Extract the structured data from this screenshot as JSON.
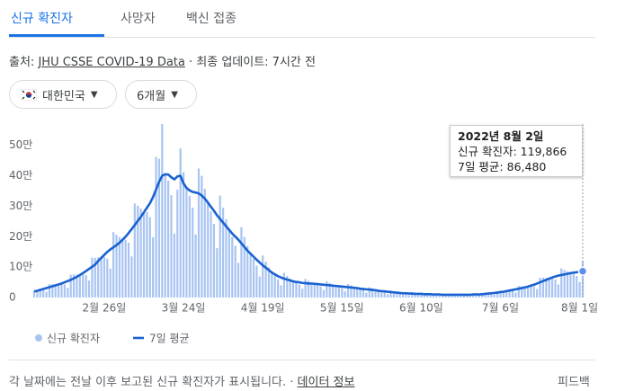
{
  "tabs": [
    "신규 확진자",
    "사망자",
    "백신 접종"
  ],
  "source": {
    "prefix": "출처:",
    "link": "JHU CSSE COVID-19 Data",
    "updated": "· 최종 업데이트: 7시간 전"
  },
  "filters": [
    "대한민국",
    "6개월"
  ],
  "chart_data": {
    "type": "combo",
    "categories": [
      null,
      null,
      null,
      null,
      null,
      null,
      null,
      null,
      null,
      null,
      null,
      null,
      null,
      null,
      null,
      null,
      null,
      null,
      null,
      null,
      null,
      null,
      null,
      "2월 26일",
      null,
      null,
      null,
      null,
      null,
      null,
      null,
      null,
      null,
      null,
      null,
      null,
      null,
      null,
      null,
      null,
      null,
      null,
      null,
      null,
      null,
      null,
      null,
      null,
      null,
      "3월 24일",
      null,
      null,
      null,
      null,
      null,
      null,
      null,
      null,
      null,
      null,
      null,
      null,
      null,
      null,
      null,
      null,
      null,
      null,
      null,
      null,
      null,
      null,
      null,
      null,
      null,
      "4월 19일",
      null,
      null,
      null,
      null,
      null,
      null,
      null,
      null,
      null,
      null,
      null,
      null,
      null,
      null,
      null,
      null,
      null,
      null,
      null,
      null,
      null,
      null,
      null,
      null,
      null,
      "5월 15일",
      null,
      null,
      null,
      null,
      null,
      null,
      null,
      null,
      null,
      null,
      null,
      null,
      null,
      null,
      null,
      null,
      null,
      null,
      null,
      null,
      null,
      null,
      null,
      null,
      null,
      "6월 10일",
      null,
      null,
      null,
      null,
      null,
      null,
      null,
      null,
      null,
      null,
      null,
      null,
      null,
      null,
      null,
      null,
      null,
      null,
      null,
      null,
      null,
      null,
      null,
      null,
      null,
      "7월 6일",
      null,
      null,
      null,
      null,
      null,
      null,
      null,
      null,
      null,
      null,
      null,
      null,
      null,
      null,
      null,
      null,
      null,
      null,
      null,
      null,
      null,
      null,
      null,
      null,
      null,
      "8월 1일",
      null
    ],
    "series": [
      {
        "name": "신규 확진자",
        "type": "bar",
        "color": "#a8c4f2",
        "values": [
          22000,
          22000,
          24000,
          24000,
          19000,
          44000,
          44000,
          44000,
          43000,
          44000,
          43000,
          32000,
          75000,
          76000,
          75000,
          74000,
          76000,
          74000,
          56000,
          131000,
          130000,
          132000,
          130000,
          133000,
          128000,
          95000,
          215000,
          206000,
          198000,
          190000,
          190000,
          180000,
          135000,
          309000,
          302000,
          292000,
          280000,
          280000,
          264000,
          198000,
          462000,
          456000,
          570000,
          405000,
          384000,
          336000,
          210000,
          354000,
          490000,
          412000,
          360000,
          334000,
          295000,
          207000,
          424000,
          400000,
          357000,
          312000,
          283000,
          242000,
          162000,
          335000,
          295000,
          257000,
          222000,
          200000,
          170000,
          114000,
          231000,
          199000,
          169000,
          144000,
          127000,
          105000,
          69000,
          138000,
          118000,
          99000,
          82000,
          72000,
          60000,
          40000,
          81000,
          71000,
          62000,
          53000,
          48000,
          43000,
          29000,
          61000,
          55000,
          42000,
          45000,
          42000,
          37000,
          25000,
          53000,
          48000,
          43000,
          38000,
          35000,
          31000,
          21000,
          44000,
          40000,
          35000,
          31000,
          28000,
          24000,
          16000,
          34000,
          30000,
          26000,
          22000,
          20000,
          17000,
          11000,
          23000,
          20000,
          18000,
          15000,
          13000,
          12000,
          8000,
          17000,
          14000,
          13000,
          12000,
          10000,
          9000,
          7000,
          13000,
          12000,
          11000,
          9000,
          9000,
          8000,
          5000,
          12000,
          11000,
          10000,
          9000,
          9000,
          8000,
          6000,
          13000,
          12000,
          12000,
          12000,
          12000,
          12000,
          9000,
          21000,
          22000,
          21000,
          21000,
          22000,
          21000,
          16000,
          38000,
          37000,
          36000,
          36000,
          37000,
          36000,
          28000,
          65000,
          65000,
          64000,
          62000,
          63000,
          59000,
          43000,
          96000,
          91000,
          86000,
          80000,
          78000,
          71000,
          51000,
          119866
        ]
      },
      {
        "name": "7일 평균",
        "type": "line",
        "color": "#1a62d0",
        "values": [
          20000,
          22000,
          25000,
          28000,
          31000,
          34000,
          37000,
          40000,
          43000,
          46000,
          50000,
          54000,
          58000,
          63000,
          68000,
          74000,
          80000,
          87000,
          94000,
          101000,
          108000,
          120000,
          130000,
          140000,
          150000,
          158000,
          165000,
          172000,
          180000,
          190000,
          200000,
          212000,
          225000,
          238000,
          252000,
          265000,
          280000,
          295000,
          310000,
          330000,
          355000,
          380000,
          400000,
          405000,
          404000,
          395000,
          388000,
          398000,
          400000,
          375000,
          360000,
          352000,
          347000,
          345000,
          342000,
          335000,
          325000,
          312000,
          298000,
          285000,
          270000,
          258000,
          246000,
          234000,
          222000,
          210000,
          200000,
          190000,
          178000,
          166000,
          154000,
          144000,
          134000,
          124000,
          115000,
          106000,
          98000,
          90000,
          82000,
          76000,
          70000,
          66000,
          62000,
          59000,
          56000,
          53000,
          51000,
          50000,
          48000,
          47000,
          46000,
          46000,
          45000,
          44000,
          43000,
          42000,
          41000,
          40000,
          39000,
          38000,
          37000,
          36000,
          35000,
          34000,
          33000,
          32000,
          31000,
          29000,
          28000,
          27000,
          26000,
          25000,
          24000,
          22000,
          21000,
          20000,
          19000,
          18000,
          17000,
          16000,
          15000,
          14000,
          14000,
          13000,
          13000,
          12000,
          12000,
          12000,
          11000,
          11000,
          11000,
          10000,
          10000,
          10000,
          9000,
          9000,
          9000,
          9000,
          9000,
          9000,
          9000,
          9000,
          9000,
          9000,
          10000,
          10000,
          10000,
          11000,
          12000,
          13000,
          14000,
          15000,
          16000,
          18000,
          19000,
          21000,
          23000,
          25000,
          27000,
          29000,
          31000,
          33000,
          36000,
          39000,
          42000,
          46000,
          50000,
          54000,
          58000,
          62000,
          66000,
          69000,
          72000,
          74000,
          76000,
          78000,
          80000,
          82000,
          83000,
          85000,
          86480
        ]
      }
    ],
    "ylim": [
      0,
      570000
    ],
    "yticks": [
      0,
      {
        "value": 100000,
        "label": "10만"
      },
      {
        "value": 200000,
        "label": "20만"
      },
      {
        "value": 300000,
        "label": "30만"
      },
      {
        "value": 400000,
        "label": "40만"
      },
      {
        "value": 500000,
        "label": "50만"
      }
    ],
    "grid": false,
    "tooltip": {
      "title": "2022년 8월 2일",
      "lines": [
        "신규 확진자: 119,866",
        "7일 평균: 86,480"
      ]
    }
  },
  "footer": {
    "note": "각 날짜에는 전날 이후 보고된 신규 확진자가 표시됩니다. ·",
    "link": "데이터 정보",
    "feedback": "피드백"
  }
}
